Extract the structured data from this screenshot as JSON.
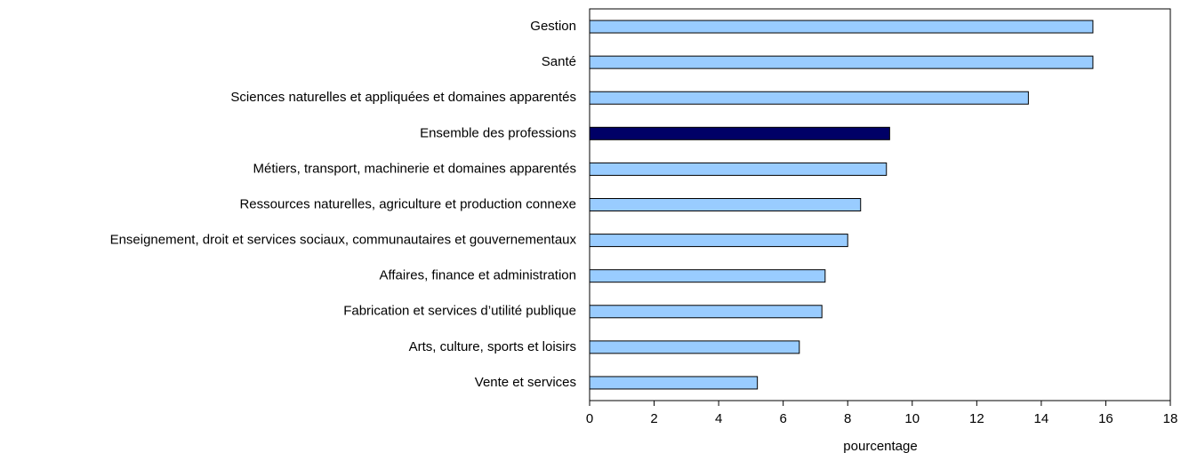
{
  "chart_data": {
    "type": "hbar",
    "categories": [
      "Gestion",
      "Santé",
      "Sciences naturelles et appliquées et domaines apparentés",
      "Ensemble des professions",
      "Métiers, transport, machinerie et domaines apparentés",
      "Ressources naturelles, agriculture et production connexe",
      "Enseignement, droit et services sociaux, communautaires et gouvernementaux",
      "Affaires, finance et administration",
      "Fabrication et services d’utilité publique",
      "Arts, culture, sports et loisirs",
      "Vente et services"
    ],
    "values": [
      15.6,
      15.6,
      13.6,
      9.3,
      9.2,
      8.4,
      8.0,
      7.3,
      7.2,
      6.5,
      5.2
    ],
    "colors": [
      "#99ccff",
      "#99ccff",
      "#99ccff",
      "#000066",
      "#99ccff",
      "#99ccff",
      "#99ccff",
      "#99ccff",
      "#99ccff",
      "#99ccff",
      "#99ccff"
    ],
    "xlabel": "pourcentage",
    "xlim": [
      0,
      18
    ],
    "xticks": [
      0,
      2,
      4,
      6,
      8,
      10,
      12,
      14,
      16,
      18
    ],
    "grid": false
  }
}
